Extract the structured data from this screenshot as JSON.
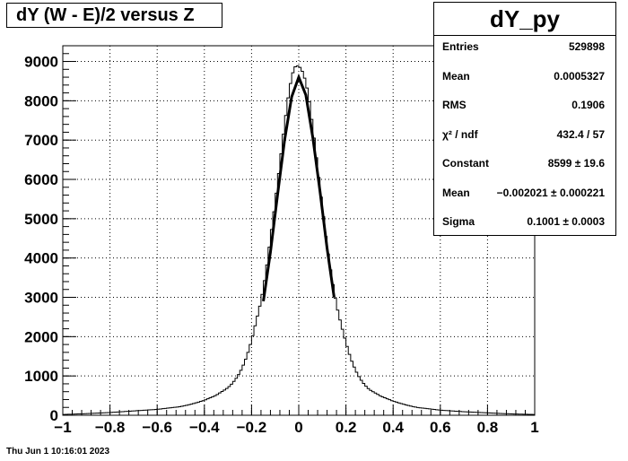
{
  "title": "dY (W - E)/2 versus Z",
  "stats": {
    "name": "dY_py",
    "rows": [
      {
        "label": "Entries",
        "value": "529898"
      },
      {
        "label": "Mean",
        "value": "0.0005327"
      },
      {
        "label": "RMS",
        "value": "0.1906"
      },
      {
        "label": "χ² / ndf",
        "value": "432.4 / 57"
      },
      {
        "label": "Constant",
        "value": "8599 ± 19.6"
      },
      {
        "label": "Mean",
        "value": "−0.002021 ± 0.000221"
      },
      {
        "label": "Sigma",
        "value": "0.1001 ± 0.0003"
      }
    ]
  },
  "footer": "Thu Jun  1 10:16:01 2023",
  "chart_data": {
    "type": "line",
    "title": "dY (W - E)/2 versus Z",
    "xlabel": "",
    "ylabel": "",
    "xlim": [
      -1,
      1
    ],
    "ylim": [
      0,
      9400
    ],
    "grid": true,
    "x_ticks": [
      -1,
      -0.8,
      -0.6,
      -0.4,
      -0.2,
      0,
      0.2,
      0.4,
      0.6,
      0.8,
      1
    ],
    "x_tick_labels": [
      "−1",
      "−0.8",
      "−0.6",
      "−0.4",
      "−0.2",
      "0",
      "0.2",
      "0.4",
      "0.6",
      "0.8",
      "1"
    ],
    "y_ticks": [
      0,
      1000,
      2000,
      3000,
      4000,
      5000,
      6000,
      7000,
      8000,
      9000
    ],
    "y_tick_labels": [
      "0",
      "1000",
      "2000",
      "3000",
      "4000",
      "5000",
      "6000",
      "7000",
      "8000",
      "9000"
    ],
    "series": [
      {
        "kind": "histogram",
        "x": [
          -1.0,
          -0.9,
          -0.8,
          -0.7,
          -0.6,
          -0.5,
          -0.45,
          -0.4,
          -0.35,
          -0.3,
          -0.28,
          -0.26,
          -0.24,
          -0.22,
          -0.2,
          -0.18,
          -0.16,
          -0.14,
          -0.12,
          -0.1,
          -0.08,
          -0.06,
          -0.04,
          -0.02,
          0.0,
          0.02,
          0.04,
          0.06,
          0.08,
          0.1,
          0.12,
          0.14,
          0.16,
          0.18,
          0.2,
          0.22,
          0.24,
          0.26,
          0.28,
          0.3,
          0.35,
          0.4,
          0.45,
          0.5,
          0.6,
          0.7,
          0.8,
          0.9,
          1.0
        ],
        "y": [
          20,
          40,
          70,
          110,
          150,
          220,
          290,
          380,
          510,
          700,
          820,
          980,
          1200,
          1500,
          1900,
          2400,
          2900,
          3600,
          4500,
          5400,
          6400,
          7400,
          8300,
          8850,
          8900,
          8700,
          8200,
          7300,
          6300,
          5300,
          4300,
          3500,
          2800,
          2300,
          1850,
          1450,
          1150,
          930,
          770,
          650,
          480,
          360,
          270,
          200,
          130,
          90,
          60,
          35,
          20
        ]
      },
      {
        "kind": "gaussian_fit",
        "x": [
          -0.15,
          -0.12,
          -0.09,
          -0.06,
          -0.03,
          0.0,
          0.03,
          0.06,
          0.09,
          0.12,
          0.15
        ],
        "y": [
          2900,
          4150,
          5600,
          7000,
          8100,
          8600,
          8150,
          7050,
          5700,
          4250,
          3000
        ]
      }
    ]
  }
}
